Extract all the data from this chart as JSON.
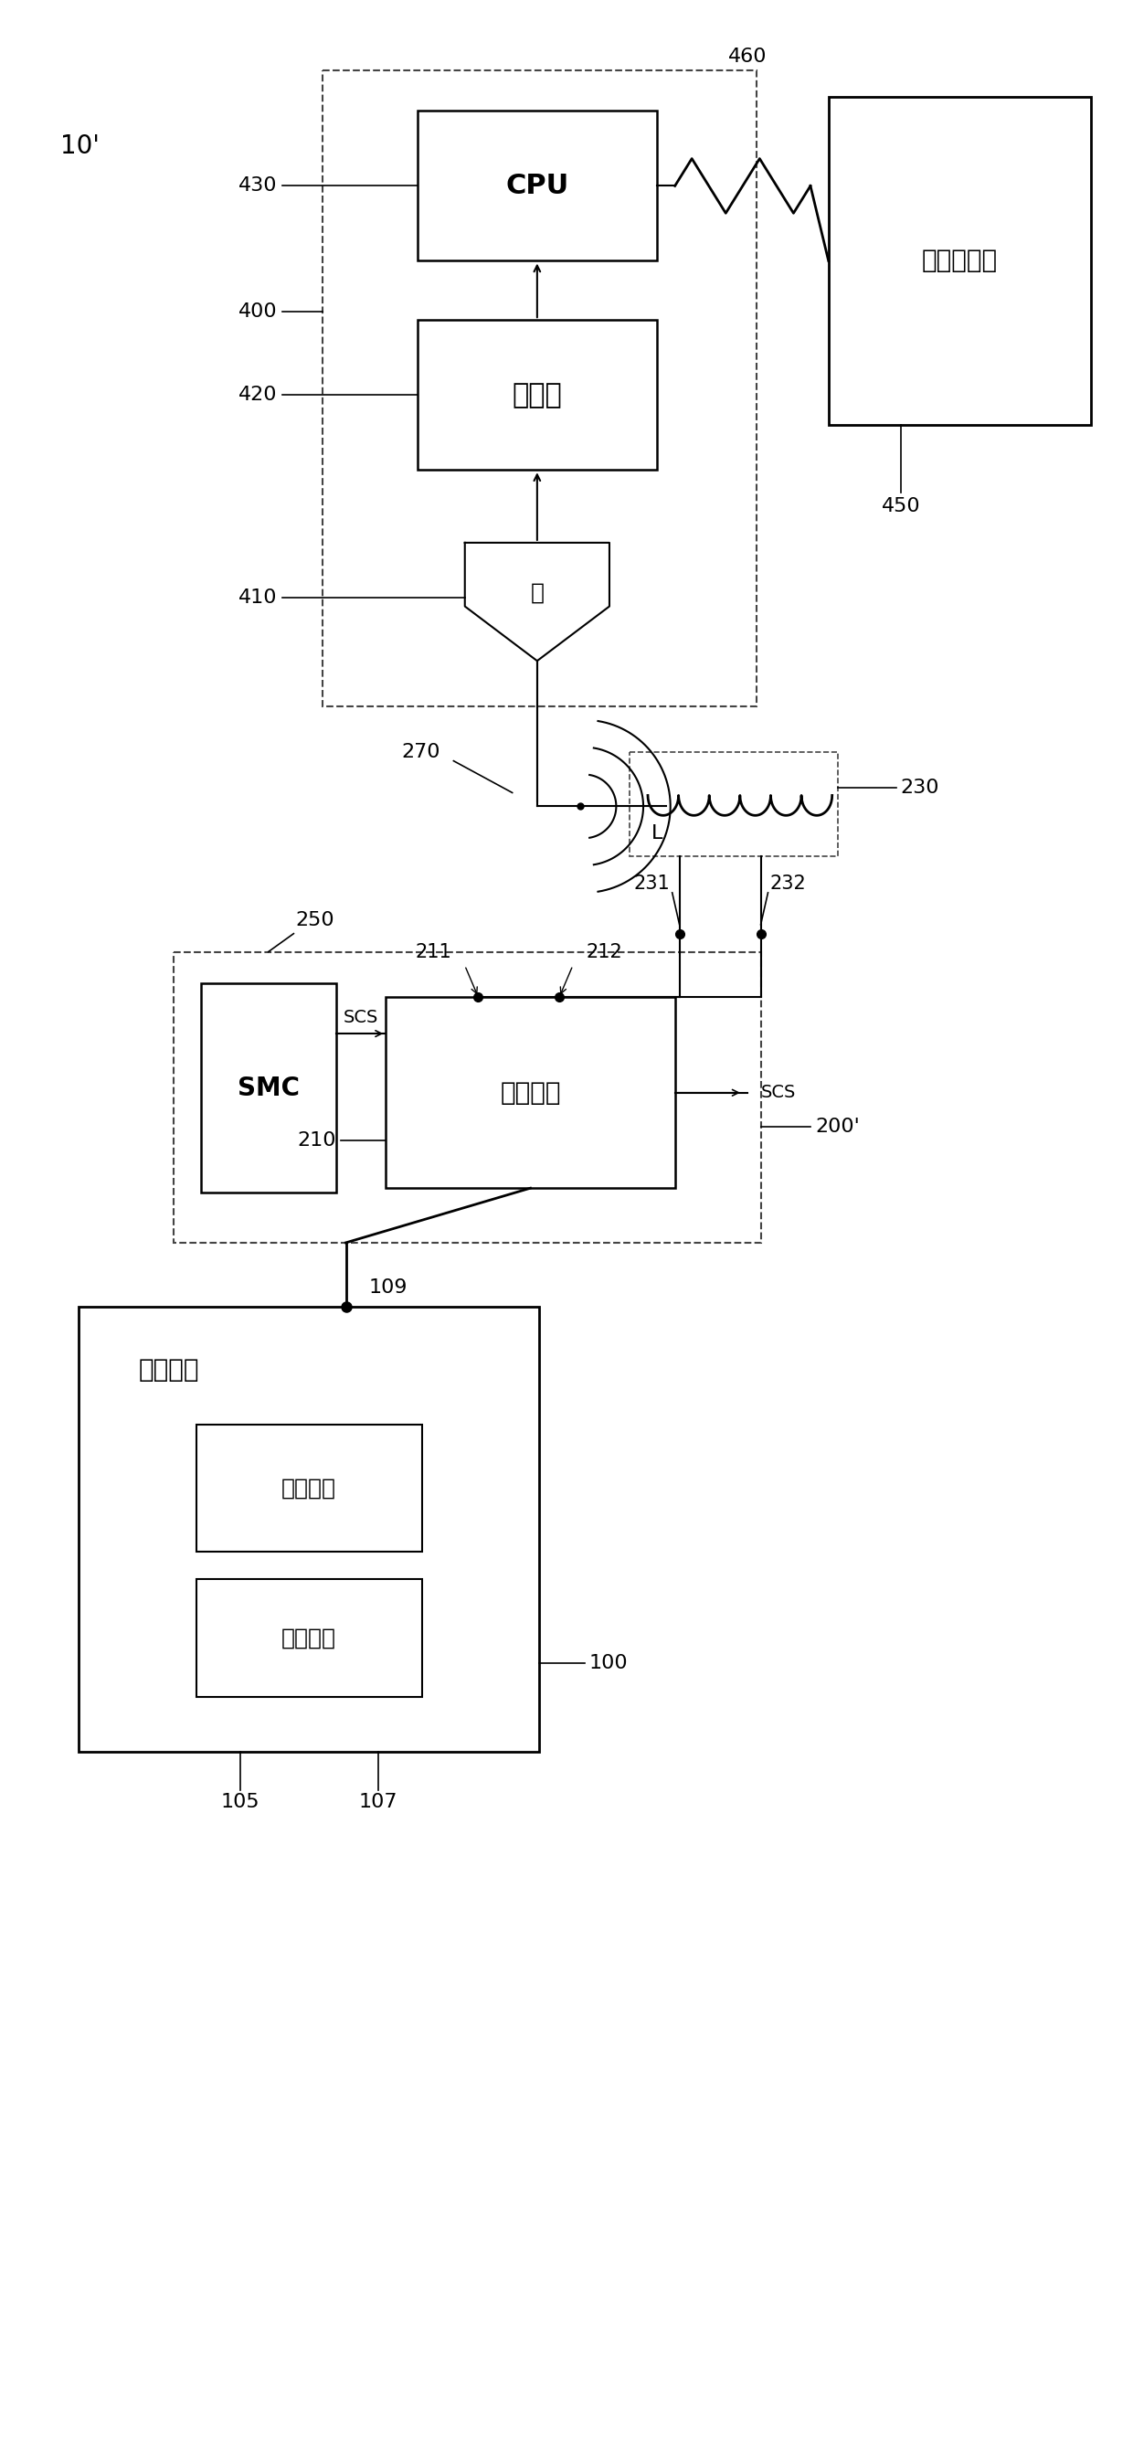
{
  "bg_color": "#ffffff",
  "line_color": "#000000",
  "fig_label": "10'",
  "mobile_device_label": "移动设备",
  "wallet_label": "錢包应用",
  "payment_label": "支付图标",
  "switch_label": "开关电路",
  "smc_label": "SMC",
  "inductor_label": "L",
  "decoder_label": "解码器",
  "cpu_label": "CPU",
  "head_label": "头",
  "tp_label": "交易处理器",
  "ref_10": "10'",
  "ref_100": "100",
  "ref_105": "105",
  "ref_107": "107",
  "ref_109": "109",
  "ref_200": "200'",
  "ref_210": "210",
  "ref_211": "211",
  "ref_212": "212",
  "ref_230": "230",
  "ref_231": "231",
  "ref_232": "232",
  "ref_250": "250",
  "ref_270": "270",
  "ref_400": "400",
  "ref_410": "410",
  "ref_420": "420",
  "ref_430": "430",
  "ref_450": "450",
  "ref_460": "460",
  "scs_label": "SCS"
}
